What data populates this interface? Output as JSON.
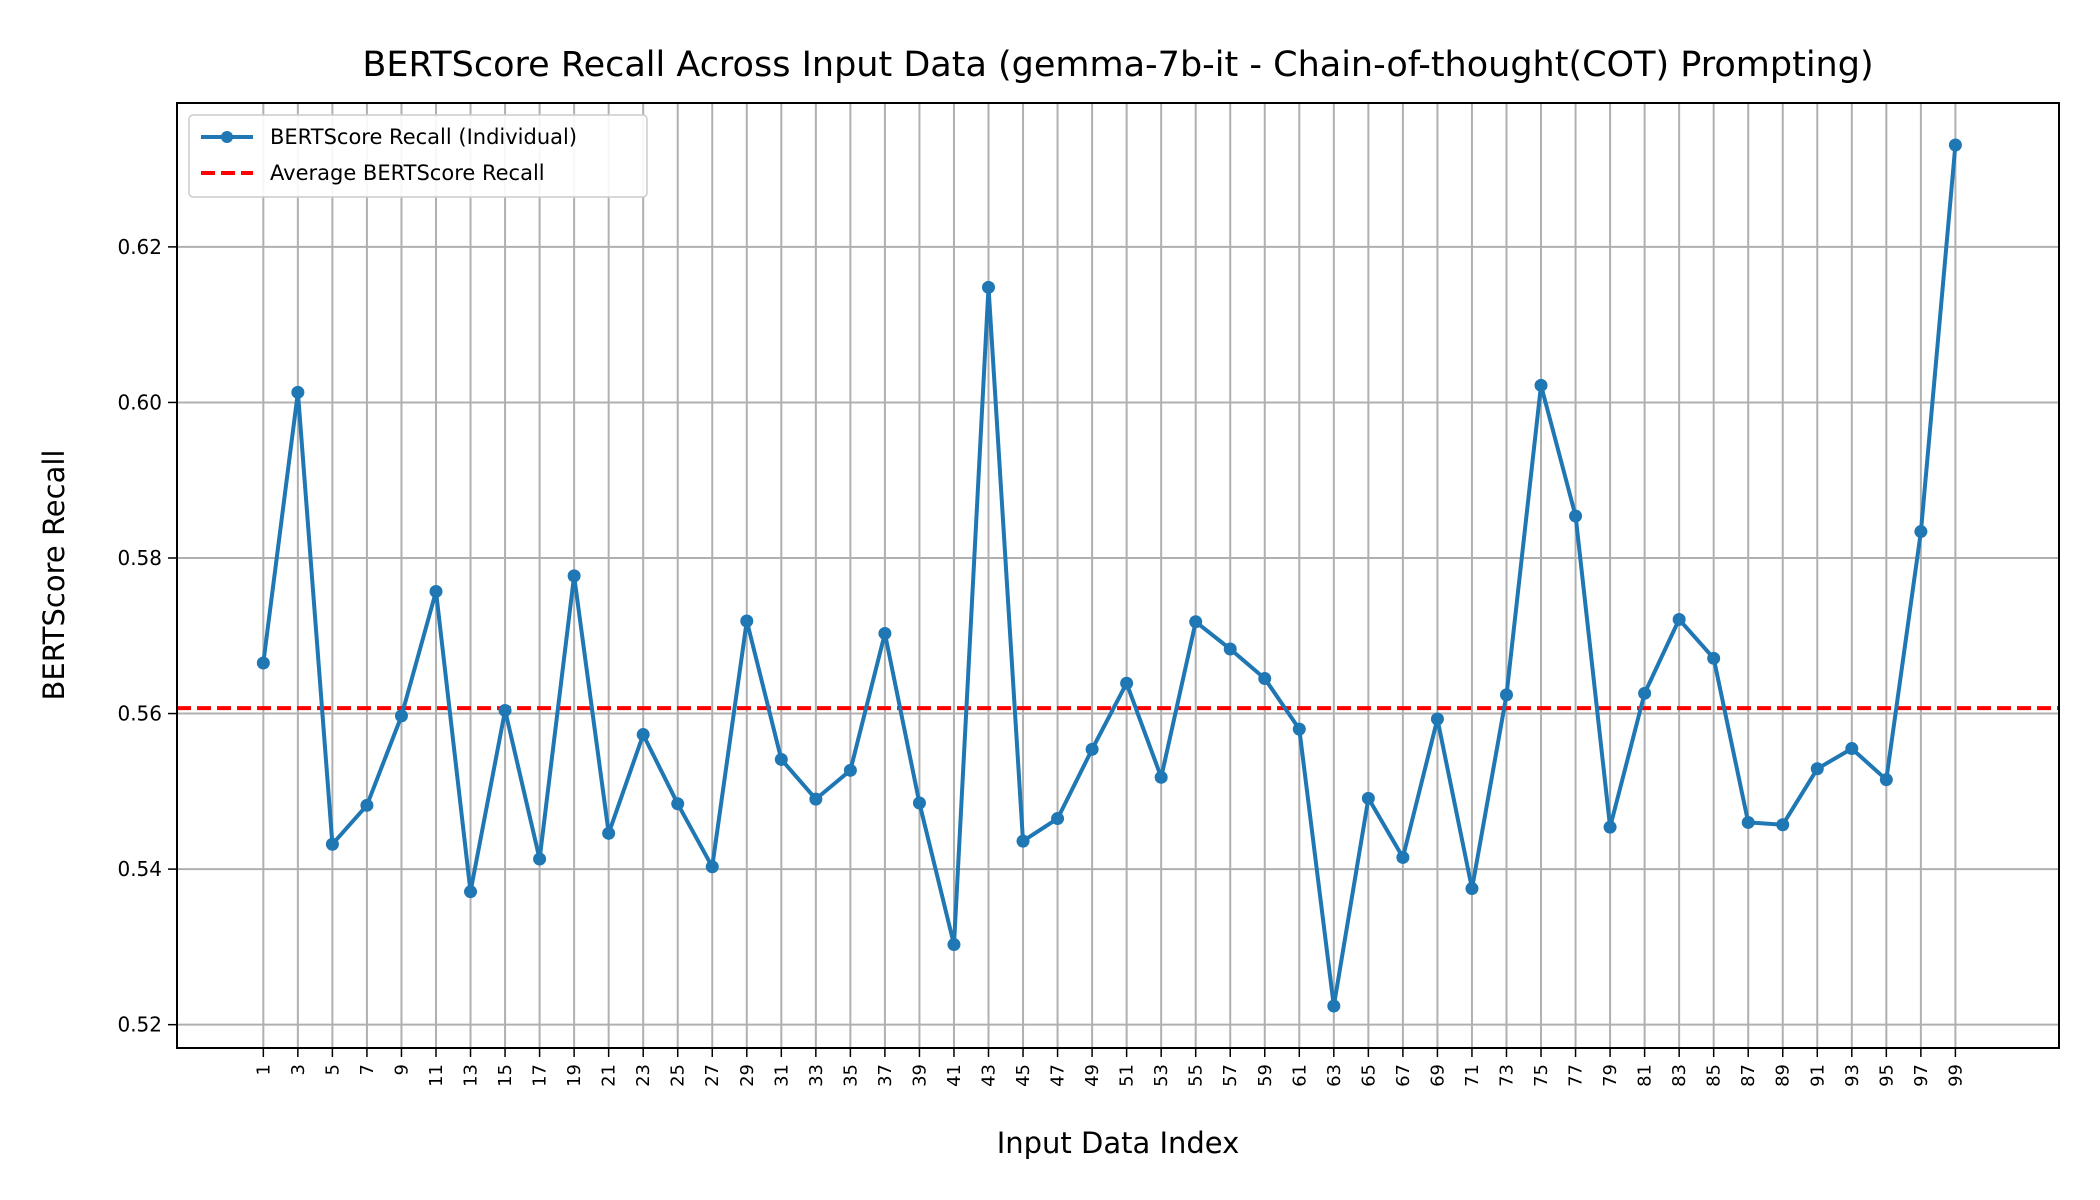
{
  "chart_data": {
    "type": "line",
    "title": "BERTScore Recall Across Input Data (gemma-7b-it - Chain-of-thought(COT) Prompting)",
    "xlabel": "Input Data Index",
    "ylabel": "BERTScore Recall",
    "xlim": [
      -4,
      105
    ],
    "ylim": [
      0.517,
      0.6385
    ],
    "grid": true,
    "legend_position": "top-left",
    "x": [
      1,
      3,
      5,
      7,
      9,
      11,
      13,
      15,
      17,
      19,
      21,
      23,
      25,
      27,
      29,
      31,
      33,
      35,
      37,
      39,
      41,
      43,
      45,
      47,
      49,
      51,
      53,
      55,
      57,
      59,
      61,
      63,
      65,
      67,
      69,
      71,
      73,
      75,
      77,
      79,
      81,
      83,
      85,
      87,
      89,
      91,
      93,
      95,
      97,
      99
    ],
    "xtick_labels": [
      "1",
      "3",
      "5",
      "7",
      "9",
      "11",
      "13",
      "15",
      "17",
      "19",
      "21",
      "23",
      "25",
      "27",
      "29",
      "31",
      "33",
      "35",
      "37",
      "39",
      "41",
      "43",
      "45",
      "47",
      "49",
      "51",
      "53",
      "55",
      "57",
      "59",
      "61",
      "63",
      "65",
      "67",
      "69",
      "71",
      "73",
      "75",
      "77",
      "79",
      "81",
      "83",
      "85",
      "87",
      "89",
      "91",
      "93",
      "95",
      "97",
      "99"
    ],
    "yticks": [
      0.52,
      0.54,
      0.56,
      0.58,
      0.6,
      0.62
    ],
    "ytick_labels": [
      "0.52",
      "0.54",
      "0.56",
      "0.58",
      "0.60",
      "0.62"
    ],
    "series": [
      {
        "name": "BERTScore Recall (Individual)",
        "color": "#1f77b4",
        "style": "solid-with-markers",
        "values": [
          0.5665,
          0.6013,
          0.5432,
          0.5482,
          0.5597,
          0.5757,
          0.5371,
          0.5604,
          0.5413,
          0.5777,
          0.5446,
          0.5573,
          0.5484,
          0.5403,
          0.5719,
          0.5541,
          0.549,
          0.5527,
          0.5703,
          0.5485,
          0.5303,
          0.6148,
          0.5436,
          0.5465,
          0.5554,
          0.5639,
          0.5518,
          0.5718,
          0.5683,
          0.5645,
          0.558,
          0.5224,
          0.5491,
          0.5415,
          0.5593,
          0.5375,
          0.5624,
          0.6022,
          0.5854,
          0.5454,
          0.5626,
          0.5721,
          0.5671,
          0.546,
          0.5457,
          0.5529,
          0.5555,
          0.5515,
          0.5834,
          0.6331
        ]
      },
      {
        "name": "Average BERTScore Recall",
        "color": "#ff0000",
        "style": "dashed",
        "value": 0.5607
      }
    ]
  }
}
